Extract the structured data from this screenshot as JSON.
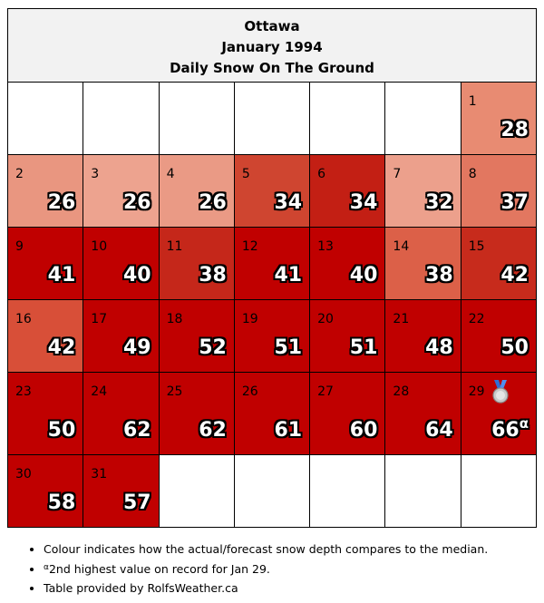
{
  "header": {
    "city": "Ottawa",
    "month": "January 1994",
    "subtitle": "Daily Snow On The Ground"
  },
  "weeks": [
    [
      null,
      null,
      null,
      null,
      null,
      null,
      {
        "day": "1",
        "value": "28",
        "color": "#e88b72"
      }
    ],
    [
      {
        "day": "2",
        "value": "26",
        "color": "#e99680"
      },
      {
        "day": "3",
        "value": "26",
        "color": "#eda38f"
      },
      {
        "day": "4",
        "value": "26",
        "color": "#ea9a85"
      },
      {
        "day": "5",
        "value": "34",
        "color": "#cf4530"
      },
      {
        "day": "6",
        "value": "34",
        "color": "#c31f14"
      },
      {
        "day": "7",
        "value": "32",
        "color": "#eca08c"
      },
      {
        "day": "8",
        "value": "37",
        "color": "#e27760"
      }
    ],
    [
      {
        "day": "9",
        "value": "41",
        "color": "#c00000"
      },
      {
        "day": "10",
        "value": "40",
        "color": "#c00000"
      },
      {
        "day": "11",
        "value": "38",
        "color": "#c5271a"
      },
      {
        "day": "12",
        "value": "41",
        "color": "#c00000"
      },
      {
        "day": "13",
        "value": "40",
        "color": "#c00000"
      },
      {
        "day": "14",
        "value": "38",
        "color": "#dc6048"
      },
      {
        "day": "15",
        "value": "42",
        "color": "#c72b1c"
      }
    ],
    [
      {
        "day": "16",
        "value": "42",
        "color": "#d84f38"
      },
      {
        "day": "17",
        "value": "49",
        "color": "#c00000"
      },
      {
        "day": "18",
        "value": "52",
        "color": "#c00000"
      },
      {
        "day": "19",
        "value": "51",
        "color": "#c00000"
      },
      {
        "day": "20",
        "value": "51",
        "color": "#c00000"
      },
      {
        "day": "21",
        "value": "48",
        "color": "#c00000"
      },
      {
        "day": "22",
        "value": "50",
        "color": "#c00000"
      }
    ],
    [
      {
        "day": "23",
        "value": "50",
        "color": "#c00000"
      },
      {
        "day": "24",
        "value": "62",
        "color": "#c00000"
      },
      {
        "day": "25",
        "value": "62",
        "color": "#c00000"
      },
      {
        "day": "26",
        "value": "61",
        "color": "#c00000"
      },
      {
        "day": "27",
        "value": "60",
        "color": "#c00000"
      },
      {
        "day": "28",
        "value": "64",
        "color": "#c00000"
      },
      {
        "day": "29",
        "value": "66",
        "sup": "α",
        "medal": "silver-medal-icon",
        "color": "#c00000"
      }
    ],
    [
      {
        "day": "30",
        "value": "58",
        "color": "#c00000"
      },
      {
        "day": "31",
        "value": "57",
        "color": "#c00000"
      },
      null,
      null,
      null,
      null,
      null
    ]
  ],
  "notes": {
    "colour": "Colour indicates how the actual/forecast snow depth compares to the median.",
    "record_sup": "α",
    "record": "2nd highest value on record for Jan 29.",
    "credit": "Table provided by RolfsWeather.ca"
  }
}
